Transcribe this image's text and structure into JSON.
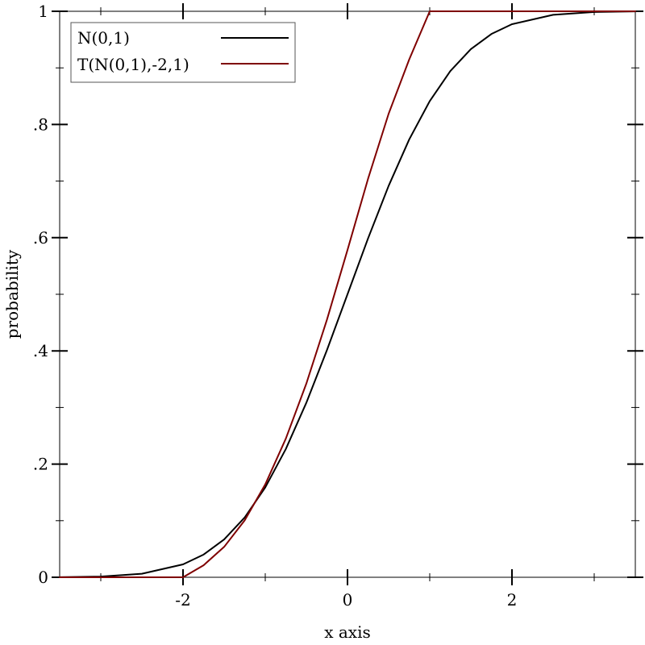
{
  "chart_data": {
    "type": "line",
    "title": "",
    "xlabel": "x axis",
    "ylabel": "probability",
    "xlim": [
      -3.5,
      3.5
    ],
    "ylim": [
      0,
      1
    ],
    "x_ticks": [
      {
        "value": -2,
        "label": "-2"
      },
      {
        "value": 0,
        "label": "0"
      },
      {
        "value": 2,
        "label": "2"
      }
    ],
    "x_minor_ticks": [
      -3,
      -1,
      1,
      3
    ],
    "y_ticks": [
      {
        "value": 0,
        "label": "0"
      },
      {
        "value": 0.2,
        "label": ".2"
      },
      {
        "value": 0.4,
        "label": ".4"
      },
      {
        "value": 0.6,
        "label": ".6"
      },
      {
        "value": 0.8,
        "label": ".8"
      },
      {
        "value": 1,
        "label": "1"
      }
    ],
    "y_minor_ticks": [
      0.1,
      0.3,
      0.5,
      0.7,
      0.9
    ],
    "grid": false,
    "legend_position": "top-left",
    "series": [
      {
        "name": "N(0,1)",
        "color": "#000000",
        "x": [
          -3.5,
          -3.0,
          -2.5,
          -2.0,
          -1.75,
          -1.5,
          -1.25,
          -1.0,
          -0.75,
          -0.5,
          -0.25,
          0.0,
          0.25,
          0.5,
          0.75,
          1.0,
          1.25,
          1.5,
          1.75,
          2.0,
          2.5,
          3.0,
          3.5
        ],
        "y": [
          0.0002,
          0.0013,
          0.0062,
          0.0228,
          0.0401,
          0.0668,
          0.1056,
          0.1587,
          0.2266,
          0.3085,
          0.4013,
          0.5,
          0.5987,
          0.6915,
          0.7734,
          0.8413,
          0.8944,
          0.9332,
          0.9599,
          0.9772,
          0.9938,
          0.9987,
          0.9998
        ]
      },
      {
        "name": "T(N(0,1),-2,1)",
        "color": "#7f0000",
        "x": [
          -3.5,
          -2.0,
          -1.75,
          -1.5,
          -1.25,
          -1.0,
          -0.75,
          -0.5,
          -0.25,
          0.0,
          0.25,
          0.5,
          0.75,
          1.0,
          3.5
        ],
        "y": [
          0.0,
          0.0,
          0.0212,
          0.0537,
          0.1006,
          0.1641,
          0.2449,
          0.3424,
          0.455,
          0.5783,
          0.7041,
          0.8189,
          0.9147,
          1.0,
          1.0
        ]
      }
    ]
  }
}
